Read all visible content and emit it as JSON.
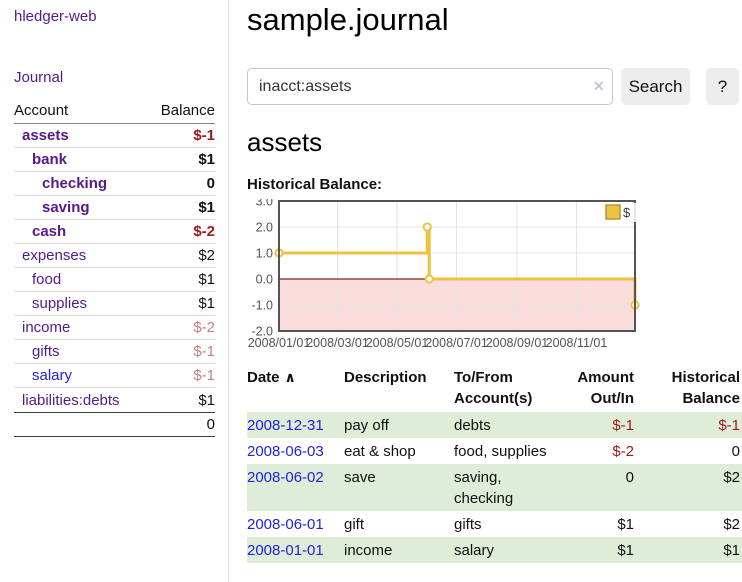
{
  "app": {
    "brand": "hledger-web",
    "nav_journal": "Journal"
  },
  "sidebar": {
    "header": {
      "account": "Account",
      "balance": "Balance"
    },
    "accounts": [
      {
        "name": "assets",
        "depth": 1,
        "balance": "$-1",
        "bold": true,
        "tone": "neg",
        "link": "purple"
      },
      {
        "name": "bank",
        "depth": 2,
        "balance": "$1",
        "bold": true,
        "tone": "pos",
        "link": "purple"
      },
      {
        "name": "checking",
        "depth": 3,
        "balance": "0",
        "bold": true,
        "tone": "pos",
        "link": "purple"
      },
      {
        "name": "saving",
        "depth": 3,
        "balance": "$1",
        "bold": true,
        "tone": "pos",
        "link": "purple"
      },
      {
        "name": "cash",
        "depth": 2,
        "balance": "$-2",
        "bold": true,
        "tone": "neg",
        "link": "purple"
      },
      {
        "name": "expenses",
        "depth": 1,
        "balance": "$2",
        "bold": false,
        "tone": "pos",
        "link": "purple"
      },
      {
        "name": "food",
        "depth": 2,
        "balance": "$1",
        "bold": false,
        "tone": "pos",
        "link": "purple"
      },
      {
        "name": "supplies",
        "depth": 2,
        "balance": "$1",
        "bold": false,
        "tone": "pos",
        "link": "purple"
      },
      {
        "name": "income",
        "depth": 1,
        "balance": "$-2",
        "bold": false,
        "tone": "negsoft",
        "link": "purple"
      },
      {
        "name": "gifts",
        "depth": 2,
        "balance": "$-1",
        "bold": false,
        "tone": "negsoft",
        "link": "purple"
      },
      {
        "name": "salary",
        "depth": 2,
        "balance": "$-1",
        "bold": false,
        "tone": "negsoft",
        "link": "blue"
      },
      {
        "name": "liabilities:debts",
        "depth": 1,
        "balance": "$1",
        "bold": false,
        "tone": "pos",
        "link": "purple"
      }
    ],
    "total": "0"
  },
  "main": {
    "title": "sample.journal",
    "search": {
      "value": "inacct:assets",
      "clear_icon": "×",
      "button_label": "Search",
      "help_label": "?"
    },
    "account_heading": "assets",
    "chart_label": "Historical Balance:"
  },
  "chart_data": {
    "type": "line",
    "title": "Historical Balance:",
    "step": true,
    "series": [
      {
        "name": "$",
        "color": "#edc240",
        "points": [
          {
            "date": "2008-01-01",
            "value": 1.0
          },
          {
            "date": "2008-06-01",
            "value": 2.0
          },
          {
            "date": "2008-06-03",
            "value": 0.0
          },
          {
            "date": "2008-12-31",
            "value": -1.0
          }
        ]
      }
    ],
    "xlim": [
      "2008-01-01",
      "2008-12-31"
    ],
    "ylim": [
      -2.0,
      3.0
    ],
    "y_ticks": [
      "3.0",
      "2.0",
      "1.0",
      "0.0",
      "-1.0",
      "-2.0"
    ],
    "x_tick_dates": [
      "2008-01-01",
      "2008-03-01",
      "2008-05-01",
      "2008-07-01",
      "2008-09-01",
      "2008-11-01"
    ],
    "x_tick_labels": [
      "2008/01/01",
      "2008/03/01",
      "2008/05/01",
      "2008/07/01",
      "2008/09/01",
      "2008/11/01"
    ],
    "grid": true,
    "legend": {
      "label": "$",
      "position": "top-right"
    },
    "colors": {
      "negative_region": "#fbdcdc",
      "zero_line": "#8f1d1d",
      "gridline": "#e3e3e3",
      "plot_border": "#545454",
      "axis_text": "#545454",
      "legend_square_border": "#b89730"
    }
  },
  "register": {
    "sort_icon": "∧",
    "headers": [
      {
        "label": "Date"
      },
      {
        "label": "Description"
      },
      {
        "label": "To/From Account(s)"
      },
      {
        "label": "Amount Out/In"
      },
      {
        "label": "Historical Balance"
      }
    ],
    "rows": [
      {
        "date": "2008-12-31",
        "description": "pay off",
        "accounts": "debts",
        "amount": "$-1",
        "balance": "$-1"
      },
      {
        "date": "2008-06-03",
        "description": "eat & shop",
        "accounts": "food, supplies",
        "amount": "$-2",
        "balance": "0"
      },
      {
        "date": "2008-06-02",
        "description": "save",
        "accounts": "saving, checking",
        "amount": "0",
        "balance": "$2"
      },
      {
        "date": "2008-06-01",
        "description": "gift",
        "accounts": "gifts",
        "amount": "$1",
        "balance": "$2"
      },
      {
        "date": "2008-01-01",
        "description": "income",
        "accounts": "salary",
        "amount": "$1",
        "balance": "$1"
      }
    ]
  }
}
